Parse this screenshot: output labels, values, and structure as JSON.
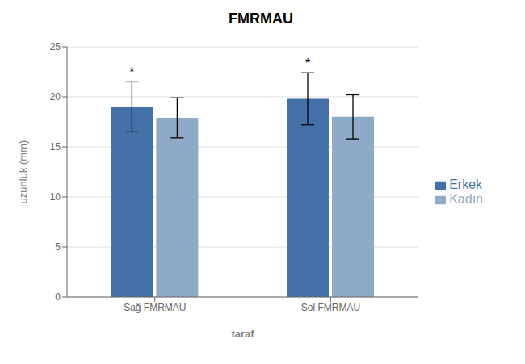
{
  "chart_data": {
    "type": "bar",
    "title": "FMRMAU",
    "xlabel": "taraf",
    "ylabel": "uzunluk (mm)",
    "categories": [
      "Sağ FMRMAU",
      "Sol FMRMAU"
    ],
    "series": [
      {
        "name": "Erkek",
        "color": "#4472A8",
        "values": [
          19.0,
          19.8
        ],
        "errors": [
          2.5,
          2.6
        ]
      },
      {
        "name": "Kadın",
        "color": "#8FA9C8",
        "values": [
          17.9,
          18.0
        ],
        "errors": [
          2.0,
          2.2
        ]
      }
    ],
    "ylim": [
      0,
      25
    ],
    "yticks": [
      0,
      5,
      10,
      15,
      20,
      25
    ],
    "grid": true,
    "legend": "right",
    "annotations": [
      {
        "text": "*",
        "series": "Erkek",
        "category": "Sağ FMRMAU"
      },
      {
        "text": "*",
        "series": "Erkek",
        "category": "Sol FMRMAU"
      }
    ]
  }
}
